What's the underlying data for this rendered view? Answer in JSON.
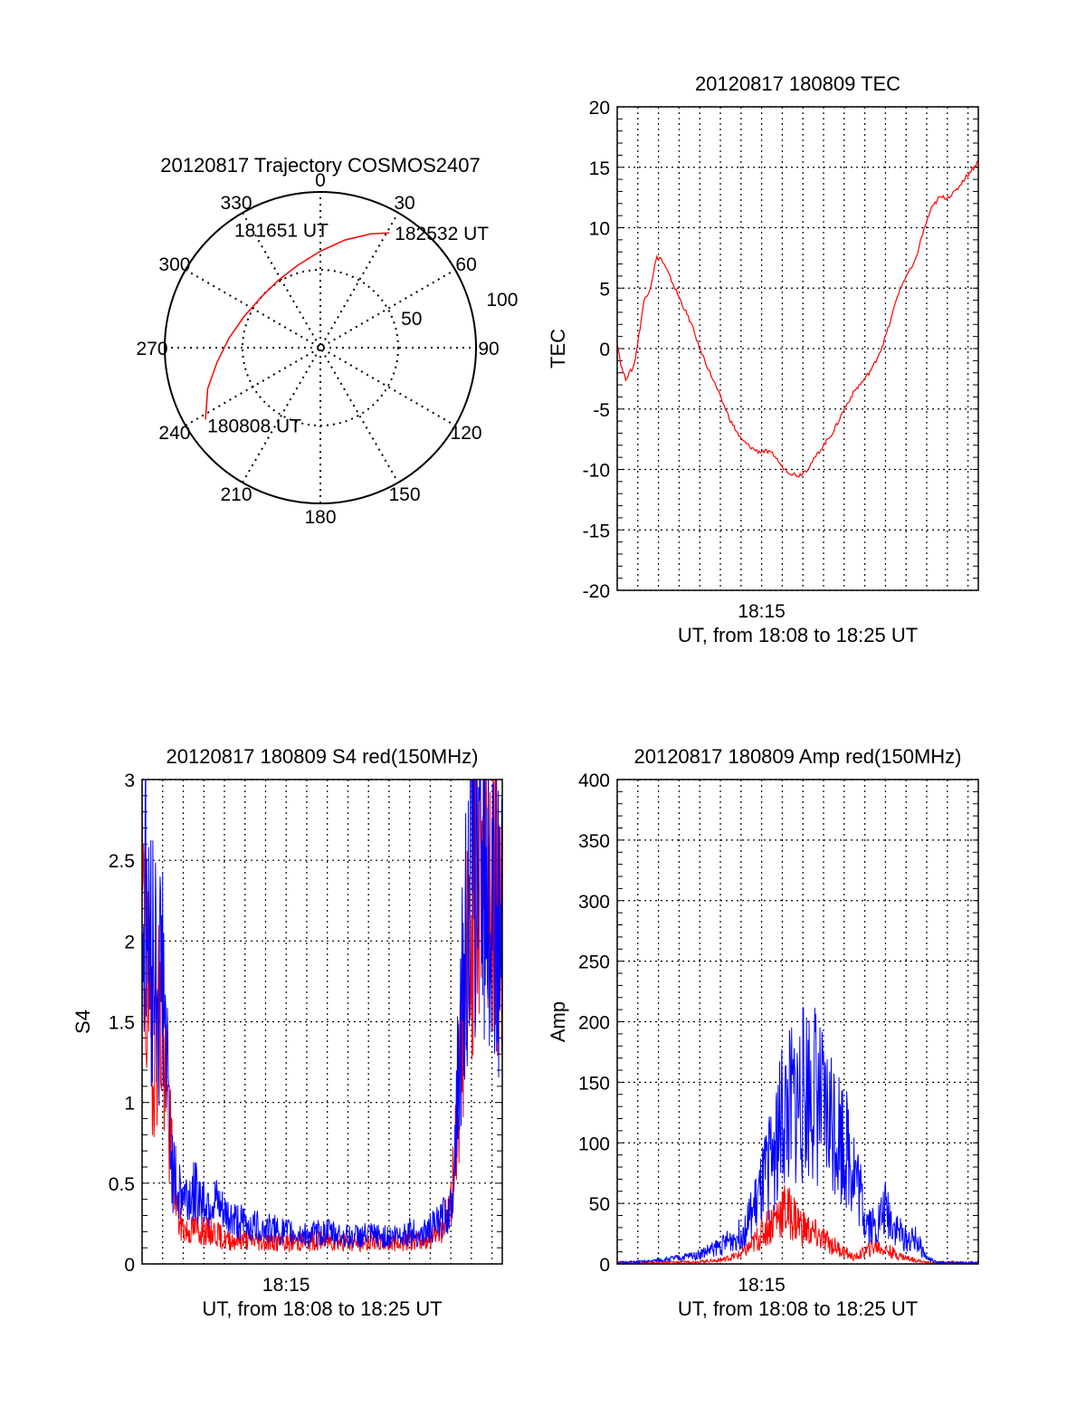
{
  "chart_data": [
    {
      "id": "polar",
      "type": "polar-trajectory",
      "title": "20120817 Trajectory COSMOS2407",
      "azimuth_labels": [
        "0",
        "30",
        "60",
        "90",
        "120",
        "150",
        "180",
        "210",
        "240",
        "270",
        "300",
        "330"
      ],
      "radius_labels": [
        "50",
        "100"
      ],
      "radius_max": 100,
      "trajectory": [
        {
          "az": 238,
          "r": 87
        },
        {
          "az": 250,
          "r": 77
        },
        {
          "az": 262,
          "r": 67
        },
        {
          "az": 276,
          "r": 59
        },
        {
          "az": 292,
          "r": 53
        },
        {
          "az": 310,
          "r": 50
        },
        {
          "az": 328,
          "r": 51
        },
        {
          "az": 345,
          "r": 55
        },
        {
          "az": 0,
          "r": 62
        },
        {
          "az": 13,
          "r": 71
        },
        {
          "az": 24,
          "r": 80
        },
        {
          "az": 31,
          "r": 86
        }
      ],
      "point_labels": [
        {
          "text": "180808 UT",
          "az": 238,
          "r": 87
        },
        {
          "text": "181651 UT",
          "az": 330,
          "r": 50
        },
        {
          "text": "182532 UT",
          "az": 31,
          "r": 86
        }
      ],
      "line_color": "#ff0000"
    },
    {
      "id": "tec",
      "type": "line",
      "title": "20120817 180809 TEC",
      "xlabel": "UT, from 18:08 to 18:25 UT",
      "ylabel": "TEC",
      "xlim": [
        8.0,
        25.5
      ],
      "ylim": [
        -20,
        20
      ],
      "yticks": [
        "-20",
        "-15",
        "-10",
        "-5",
        "0",
        "5",
        "10",
        "15",
        "20"
      ],
      "xtick_labels": [
        {
          "x": 15,
          "label": "18:15"
        }
      ],
      "grid": true,
      "series": [
        {
          "color": "#ff0000",
          "x": [
            8.0,
            8.2,
            8.4,
            8.6,
            8.8,
            9.0,
            9.3,
            9.6,
            9.9,
            10.1,
            10.4,
            10.8,
            11.2,
            11.6,
            12.0,
            12.5,
            13.0,
            13.5,
            14.0,
            14.5,
            14.8,
            15.2,
            15.6,
            16.0,
            16.4,
            16.8,
            17.2,
            17.6,
            18.0,
            18.5,
            19.0,
            19.5,
            20.0,
            20.4,
            20.8,
            21.2,
            21.6,
            22.0,
            22.4,
            22.8,
            23.2,
            23.6,
            24.0,
            24.4,
            24.8,
            25.2,
            25.5
          ],
          "y": [
            0.5,
            -1.5,
            -2.5,
            -2.0,
            -1.5,
            0.5,
            4.0,
            5.0,
            7.5,
            7.5,
            6.5,
            5.0,
            3.5,
            2.0,
            0.0,
            -2.0,
            -4.0,
            -6.0,
            -7.5,
            -8.2,
            -8.5,
            -8.5,
            -8.8,
            -9.8,
            -10.3,
            -10.5,
            -10.0,
            -9.0,
            -8.0,
            -6.8,
            -5.0,
            -3.5,
            -2.5,
            -1.5,
            0.0,
            2.0,
            4.5,
            6.0,
            7.0,
            9.5,
            11.5,
            12.5,
            12.5,
            13.0,
            14.0,
            14.8,
            15.5
          ]
        }
      ]
    },
    {
      "id": "s4",
      "type": "line",
      "title": "20120817 180809 S4 red(150MHz)",
      "xlabel": "UT, from 18:08 to 18:25 UT",
      "ylabel": "S4",
      "xlim": [
        8.0,
        25.5
      ],
      "ylim": [
        0,
        3
      ],
      "yticks": [
        "0",
        "0.5",
        "1",
        "1.5",
        "2",
        "2.5",
        "3"
      ],
      "xtick_labels": [
        {
          "x": 15,
          "label": "18:15"
        }
      ],
      "grid": true,
      "series": [
        {
          "color": "#ff0000",
          "x": [
            8.0,
            8.2,
            8.4,
            8.6,
            8.8,
            9.0,
            9.2,
            9.5,
            9.8,
            10.2,
            10.6,
            11.0,
            11.5,
            12.0,
            13.0,
            14.0,
            15.0,
            16.0,
            17.0,
            18.0,
            19.0,
            20.0,
            21.0,
            21.5,
            22.0,
            22.5,
            23.0,
            23.3,
            23.6,
            24.0,
            24.5,
            25.0,
            25.5
          ],
          "y": [
            2.2,
            1.7,
            1.5,
            1.4,
            1.6,
            1.3,
            1.0,
            0.6,
            0.25,
            0.2,
            0.22,
            0.2,
            0.2,
            0.15,
            0.15,
            0.14,
            0.13,
            0.14,
            0.15,
            0.13,
            0.14,
            0.13,
            0.15,
            0.14,
            0.16,
            0.22,
            0.35,
            0.9,
            1.5,
            2.2,
            2.6,
            2.4,
            2.2
          ]
        },
        {
          "color": "#0000ff",
          "x": [
            8.0,
            8.2,
            8.4,
            8.6,
            8.8,
            9.0,
            9.2,
            9.5,
            9.8,
            10.2,
            10.6,
            11.0,
            11.5,
            12.0,
            13.0,
            14.0,
            15.0,
            16.0,
            17.0,
            18.0,
            19.0,
            20.0,
            21.0,
            21.5,
            22.0,
            22.5,
            23.0,
            23.3,
            23.6,
            24.0,
            24.5,
            25.0,
            25.5
          ],
          "y": [
            2.0,
            2.3,
            1.8,
            2.0,
            1.7,
            1.9,
            1.2,
            0.55,
            0.45,
            0.42,
            0.45,
            0.4,
            0.38,
            0.3,
            0.25,
            0.22,
            0.2,
            0.18,
            0.2,
            0.17,
            0.18,
            0.17,
            0.2,
            0.18,
            0.22,
            0.26,
            0.35,
            1.0,
            1.8,
            2.4,
            2.6,
            2.2,
            2.0
          ]
        }
      ]
    },
    {
      "id": "amp",
      "type": "line",
      "title": "20120817 180809 Amp red(150MHz)",
      "xlabel": "UT, from 18:08 to 18:25 UT",
      "ylabel": "Amp",
      "xlim": [
        8.0,
        25.5
      ],
      "ylim": [
        0,
        400
      ],
      "yticks": [
        "0",
        "50",
        "100",
        "150",
        "200",
        "250",
        "300",
        "350",
        "400"
      ],
      "xtick_labels": [
        {
          "x": 15,
          "label": "18:15"
        }
      ],
      "grid": true,
      "series": [
        {
          "color": "#ff0000",
          "x": [
            8.0,
            10.0,
            12.0,
            13.0,
            14.0,
            14.5,
            15.0,
            15.5,
            16.0,
            16.5,
            17.0,
            17.5,
            18.0,
            18.5,
            19.0,
            19.5,
            20.0,
            20.5,
            21.0,
            21.5,
            22.0,
            22.5,
            23.0,
            25.5
          ],
          "y": [
            1,
            1,
            2,
            3,
            8,
            15,
            25,
            35,
            45,
            40,
            30,
            25,
            20,
            15,
            10,
            5,
            10,
            15,
            12,
            8,
            5,
            3,
            1,
            1
          ]
        },
        {
          "color": "#0000ff",
          "x": [
            8.0,
            9.5,
            11.0,
            12.0,
            13.0,
            14.0,
            14.5,
            15.0,
            15.5,
            16.0,
            16.5,
            17.0,
            17.5,
            18.0,
            18.5,
            19.0,
            19.5,
            20.0,
            20.5,
            21.0,
            21.5,
            22.0,
            22.5,
            23.0,
            23.5,
            25.5
          ],
          "y": [
            1,
            2,
            5,
            8,
            15,
            25,
            40,
            60,
            90,
            120,
            130,
            140,
            150,
            120,
            120,
            100,
            80,
            40,
            30,
            45,
            30,
            20,
            20,
            5,
            1,
            1
          ]
        }
      ]
    }
  ]
}
